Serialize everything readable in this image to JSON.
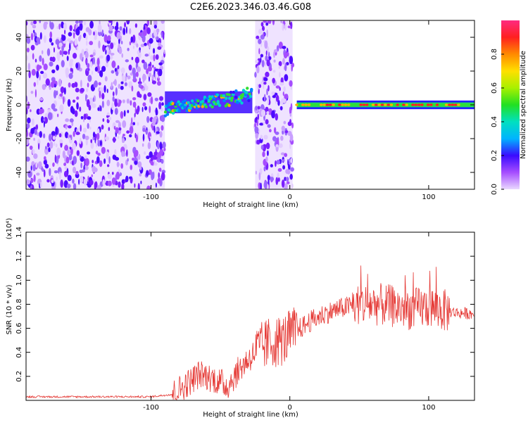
{
  "figure": {
    "title": "C2E6.2023.346.03.46.G08"
  },
  "chart_data": [
    {
      "type": "heatmap",
      "xlabel": "Height of straight line (km)",
      "ylabel": "Frequency (Hz)",
      "xlim": [
        -190,
        133
      ],
      "ylim": [
        -50,
        50
      ],
      "xticks": [
        -100,
        0,
        100
      ],
      "yticks": [
        -40,
        -20,
        0,
        20,
        40
      ],
      "colorbar": {
        "label": "Normalized spectral amplitude",
        "range": [
          0.0,
          1.0
        ],
        "ticks": [
          "0.0",
          "0.2",
          "0.4",
          "0.6",
          "0.8"
        ]
      },
      "regions": [
        {
          "x": [
            -190,
            -90
          ],
          "y": [
            -50,
            50
          ],
          "amplitude": 0.15,
          "note": "scattered noise"
        },
        {
          "x": [
            -90,
            -27
          ],
          "y": [
            -5,
            8
          ],
          "amplitude": 0.45,
          "note": "signal trace centered near 3 Hz"
        },
        {
          "x": [
            -25,
            2
          ],
          "y": [
            -50,
            50
          ],
          "amplitude": 0.15,
          "note": "scattered noise"
        },
        {
          "x": [
            5,
            133
          ],
          "y": [
            -3,
            3
          ],
          "amplitude": 0.95,
          "note": "strong signal centered at 0 Hz"
        }
      ]
    },
    {
      "type": "line",
      "xlabel": "Height of straight line (km)",
      "ylabel": "SNR (10 * v/v)",
      "yscale_label": "(x10⁴)",
      "xlim": [
        -190,
        133
      ],
      "ylim": [
        0,
        1.4
      ],
      "xticks": [
        -100,
        0,
        100
      ],
      "yticks": [
        0.2,
        0.4,
        0.6,
        0.8,
        1.0,
        1.2,
        1.4
      ],
      "series": [
        {
          "color": "#e53935",
          "x": [
            -190,
            -160,
            -130,
            -100,
            -85,
            -75,
            -65,
            -55,
            -45,
            -35,
            -25,
            -15,
            -5,
            5,
            15,
            25,
            35,
            45,
            55,
            62,
            70,
            80,
            90,
            100,
            110,
            120,
            133
          ],
          "y": [
            0.03,
            0.03,
            0.03,
            0.03,
            0.05,
            0.13,
            0.22,
            0.18,
            0.12,
            0.28,
            0.4,
            0.48,
            0.5,
            0.58,
            0.66,
            0.72,
            0.76,
            0.79,
            0.8,
            0.8,
            0.79,
            0.77,
            0.76,
            0.78,
            0.75,
            0.73,
            0.72
          ]
        }
      ]
    }
  ]
}
